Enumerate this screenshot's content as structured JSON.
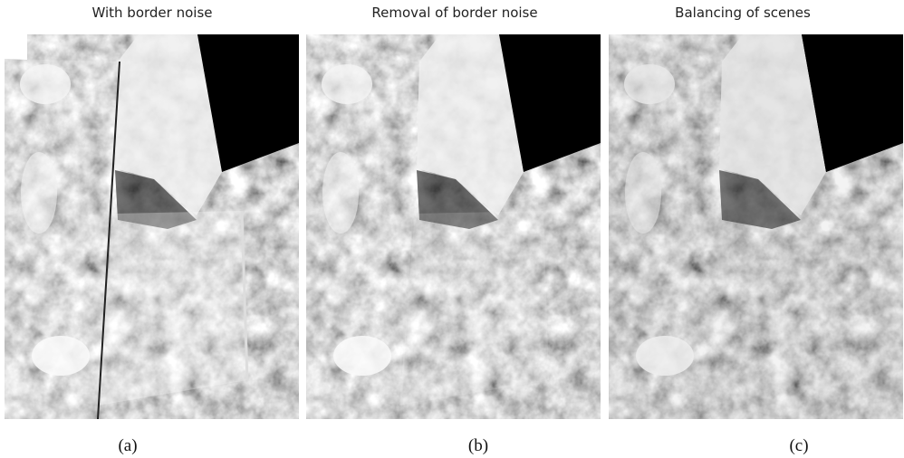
{
  "panels": [
    {
      "title": "With border noise",
      "caption": "(a)"
    },
    {
      "title": "Removal of border noise",
      "caption": "(b)"
    },
    {
      "title": "Balancing of scenes",
      "caption": "(c)"
    }
  ]
}
